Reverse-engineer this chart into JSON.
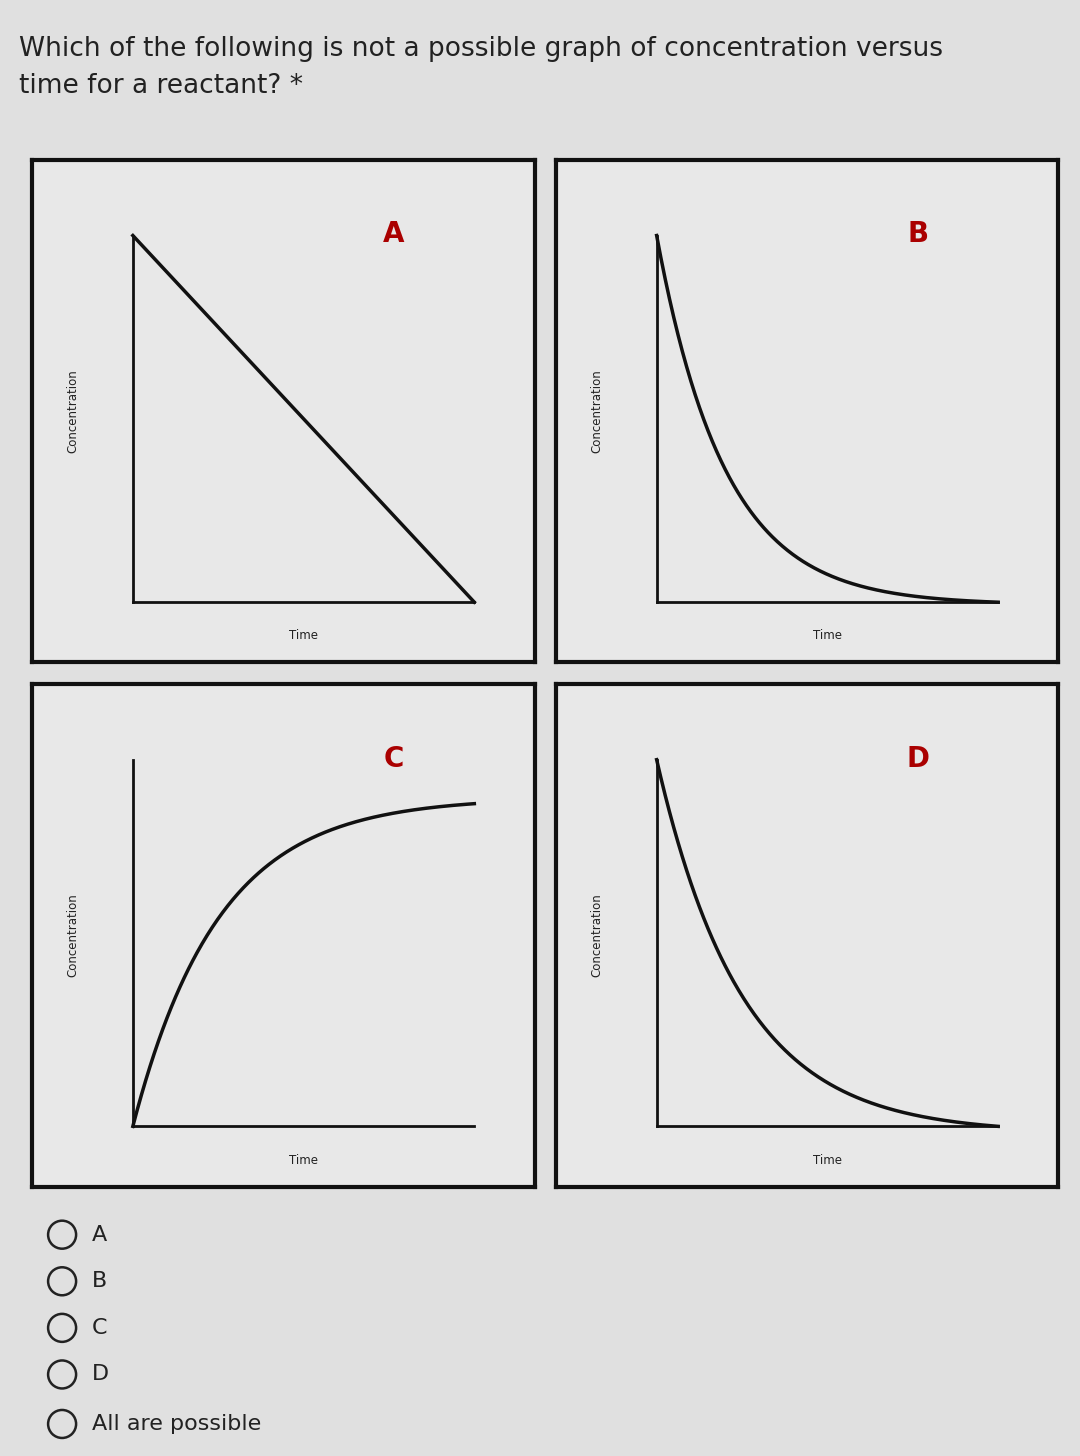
{
  "title_line1": "Which of the following is not a possible graph of concentration versus",
  "title_line2": "time for a reactant? *",
  "title_fontsize": 19,
  "bg_color": "#e0e0e0",
  "panel_bg": "#e8e8e8",
  "inner_bg": "#e8e8e8",
  "box_color": "#111111",
  "line_color": "#111111",
  "axis_color": "#111111",
  "label_color": "#222222",
  "label_letter_color": "#aa0000",
  "options": [
    "A",
    "B",
    "C",
    "D",
    "All are possible"
  ],
  "panels": [
    {
      "label": "A",
      "type": "linear_decrease"
    },
    {
      "label": "B",
      "type": "exp_decrease_steep"
    },
    {
      "label": "C",
      "type": "saturating_increase"
    },
    {
      "label": "D",
      "type": "exp_decrease_medium"
    }
  ]
}
